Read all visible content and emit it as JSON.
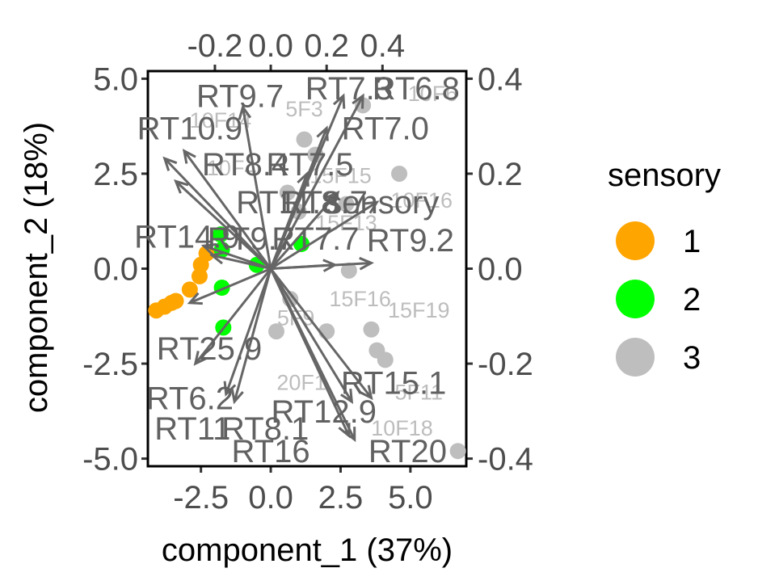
{
  "chart_data": {
    "type": "scatter",
    "subtype": "pca-biplot",
    "xlabel": "component_1   (37%)",
    "ylabel": "component_2   (18%)",
    "xlim": [
      -4.4,
      7.0
    ],
    "ylim": [
      -5.2,
      5.2
    ],
    "x_ticks": [
      "-2.5",
      "0.0",
      "2.5",
      "5.0"
    ],
    "x_tick_values": [
      -2.5,
      0.0,
      2.5,
      5.0
    ],
    "y_ticks": [
      "-5.0",
      "-2.5",
      "0.0",
      "2.5",
      "5.0"
    ],
    "y_tick_values": [
      -5.0,
      -2.5,
      0.0,
      2.5,
      5.0
    ],
    "top_axis": {
      "lim": [
        -0.44,
        0.7
      ],
      "ticks": [
        "-0.2",
        "0.0",
        "0.2",
        "0.4"
      ],
      "tick_values": [
        -0.2,
        0.0,
        0.2,
        0.4
      ]
    },
    "right_axis": {
      "lim": [
        -0.416,
        0.416
      ],
      "ticks": [
        "-0.4",
        "-0.2",
        "0.0",
        "0.2",
        "0.4"
      ],
      "tick_values": [
        -0.4,
        -0.2,
        0.0,
        0.2,
        0.4
      ]
    },
    "grid": false,
    "legend": {
      "title": "sensory",
      "position": "right",
      "entries": [
        {
          "label": "1",
          "color": "#FFA500"
        },
        {
          "label": "2",
          "color": "#00FF00"
        },
        {
          "label": "3",
          "color": "#BEBEBE"
        }
      ]
    },
    "arrow_color": "#666666",
    "points": [
      {
        "x": -4.1,
        "y": -1.1,
        "group": "1"
      },
      {
        "x": -3.8,
        "y": -1.0,
        "group": "1"
      },
      {
        "x": -3.55,
        "y": -0.9,
        "group": "1"
      },
      {
        "x": -3.4,
        "y": -0.85,
        "group": "1"
      },
      {
        "x": -2.9,
        "y": -0.55,
        "group": "1"
      },
      {
        "x": -2.55,
        "y": -0.2,
        "group": "1"
      },
      {
        "x": -2.5,
        "y": 0.1,
        "group": "1"
      },
      {
        "x": -2.3,
        "y": 0.4,
        "group": "1"
      },
      {
        "x": -1.8,
        "y": 0.9,
        "group": "2"
      },
      {
        "x": -1.75,
        "y": 0.5,
        "group": "2"
      },
      {
        "x": -1.75,
        "y": -0.5,
        "group": "2"
      },
      {
        "x": -1.7,
        "y": -1.55,
        "group": "2"
      },
      {
        "x": -0.5,
        "y": 0.1,
        "group": "2"
      },
      {
        "x": 1.1,
        "y": 0.65,
        "group": "2"
      },
      {
        "x": 3.3,
        "y": 4.3,
        "group": "3"
      },
      {
        "x": 1.2,
        "y": 3.4,
        "group": "3"
      },
      {
        "x": 1.6,
        "y": 3.0,
        "group": "3"
      },
      {
        "x": 4.6,
        "y": 2.5,
        "group": "3"
      },
      {
        "x": 0.6,
        "y": 2.0,
        "group": "3"
      },
      {
        "x": 1.0,
        "y": 1.5,
        "group": "3"
      },
      {
        "x": 2.7,
        "y": 1.7,
        "group": "3"
      },
      {
        "x": 2.8,
        "y": -0.05,
        "group": "3"
      },
      {
        "x": 0.7,
        "y": -0.8,
        "group": "3"
      },
      {
        "x": 0.2,
        "y": -1.65,
        "group": "3"
      },
      {
        "x": 2.0,
        "y": -1.65,
        "group": "3"
      },
      {
        "x": 3.6,
        "y": -1.6,
        "group": "3"
      },
      {
        "x": 3.8,
        "y": -2.15,
        "group": "3"
      },
      {
        "x": 4.1,
        "y": -2.4,
        "group": "3"
      },
      {
        "x": 6.7,
        "y": -4.8,
        "group": "3"
      }
    ],
    "observation_labels": [
      {
        "text": "5F3",
        "x": 1.2,
        "y": 4.2
      },
      {
        "text": "10F6",
        "x": 5.8,
        "y": 4.6
      },
      {
        "text": "10F14",
        "x": -1.8,
        "y": 3.9
      },
      {
        "text": "10F4",
        "x": -1.4,
        "y": 2.65
      },
      {
        "text": "15F15",
        "x": 2.5,
        "y": 2.45
      },
      {
        "text": "10F16",
        "x": 5.4,
        "y": 1.8
      },
      {
        "text": "15F13",
        "x": 2.7,
        "y": 1.2
      },
      {
        "text": "15F16",
        "x": 3.2,
        "y": -0.8
      },
      {
        "text": "15F19",
        "x": 5.3,
        "y": -1.1
      },
      {
        "text": "5F9",
        "x": 0.9,
        "y": -1.3
      },
      {
        "text": "20F1",
        "x": 1.1,
        "y": -3.0
      },
      {
        "text": "5F11",
        "x": 5.3,
        "y": -3.25
      },
      {
        "text": "10F18",
        "x": 4.7,
        "y": -4.2
      }
    ],
    "variables": [
      {
        "name": "RT9.7",
        "x": -1.0,
        "y": 4.25
      },
      {
        "name": "RT7.3",
        "x": 2.6,
        "y": 4.55
      },
      {
        "name": "RT6.8",
        "x": 3.3,
        "y": 4.55
      },
      {
        "name": "RT7.0",
        "x": 2.0,
        "y": 3.7
      },
      {
        "name": "RT10.9",
        "x": -3.1,
        "y": 3.1
      },
      {
        "name": "RT8.4",
        "x": -3.8,
        "y": 2.9
      },
      {
        "name": "RT7.5",
        "x": 1.3,
        "y": 2.5
      },
      {
        "name": "RT11.8",
        "x": -3.4,
        "y": 2.3
      },
      {
        "name": "RT8.7",
        "x": 2.4,
        "y": 2.0
      },
      {
        "name": "sensory",
        "x": 3.8,
        "y": 1.75
      },
      {
        "name": "RT14.9",
        "x": -2.4,
        "y": 0.6
      },
      {
        "name": "RT9.7",
        "x": -2.1,
        "y": 0.35
      },
      {
        "name": "RT7.7",
        "x": 2.3,
        "y": 0.1
      },
      {
        "name": "RT9.2",
        "x": 3.6,
        "y": 0.15
      },
      {
        "name": "RT25.9",
        "x": -2.9,
        "y": -0.9
      },
      {
        "name": "RT6.2",
        "x": -2.7,
        "y": -2.5
      },
      {
        "name": "RT11",
        "x": -1.3,
        "y": -3.5
      },
      {
        "name": "RT8.1",
        "x": -1.6,
        "y": -3.3
      },
      {
        "name": "RT15.1",
        "x": 3.6,
        "y": -3.4
      },
      {
        "name": "RT12.9",
        "x": 2.9,
        "y": -3.5
      },
      {
        "name": "RT16",
        "x": 2.8,
        "y": -4.4
      },
      {
        "name": "RT20",
        "x": 3.0,
        "y": -4.5
      }
    ],
    "variable_label_positions": [
      {
        "text": "RT9.7",
        "x": -1.1,
        "y": 4.55
      },
      {
        "text": "RT7.3",
        "x": 2.8,
        "y": 4.75
      },
      {
        "text": "RT6.8",
        "x": 5.2,
        "y": 4.75
      },
      {
        "text": "RT7.0",
        "x": 4.1,
        "y": 3.7
      },
      {
        "text": "RT10.9",
        "x": -2.9,
        "y": 3.7
      },
      {
        "text": "RT8.4",
        "x": -0.9,
        "y": 2.75
      },
      {
        "text": "RT7.5",
        "x": 1.4,
        "y": 2.75
      },
      {
        "text": "RT11.8",
        "x": 0.6,
        "y": 1.75
      },
      {
        "text": "RT8.7",
        "x": 1.9,
        "y": 1.75
      },
      {
        "text": "sensory",
        "x": 4.0,
        "y": 1.75
      },
      {
        "text": "RT14.9",
        "x": -3.0,
        "y": 0.85
      },
      {
        "text": "RT9.7",
        "x": -0.7,
        "y": 0.8
      },
      {
        "text": "RT7.7",
        "x": 1.6,
        "y": 0.8
      },
      {
        "text": "RT9.2",
        "x": 5.0,
        "y": 0.75
      },
      {
        "text": "RT25.9",
        "x": -2.2,
        "y": -2.1
      },
      {
        "text": "RT6.2",
        "x": -2.9,
        "y": -3.4
      },
      {
        "text": "RT11",
        "x": -2.8,
        "y": -4.2
      },
      {
        "text": "RT8.1",
        "x": -0.2,
        "y": -4.2
      },
      {
        "text": "RT15.1",
        "x": 4.4,
        "y": -3.0
      },
      {
        "text": "RT12.9",
        "x": 1.9,
        "y": -3.75
      },
      {
        "text": "RT16",
        "x": 0.0,
        "y": -4.8
      },
      {
        "text": "RT20",
        "x": 4.9,
        "y": -4.8
      }
    ]
  }
}
